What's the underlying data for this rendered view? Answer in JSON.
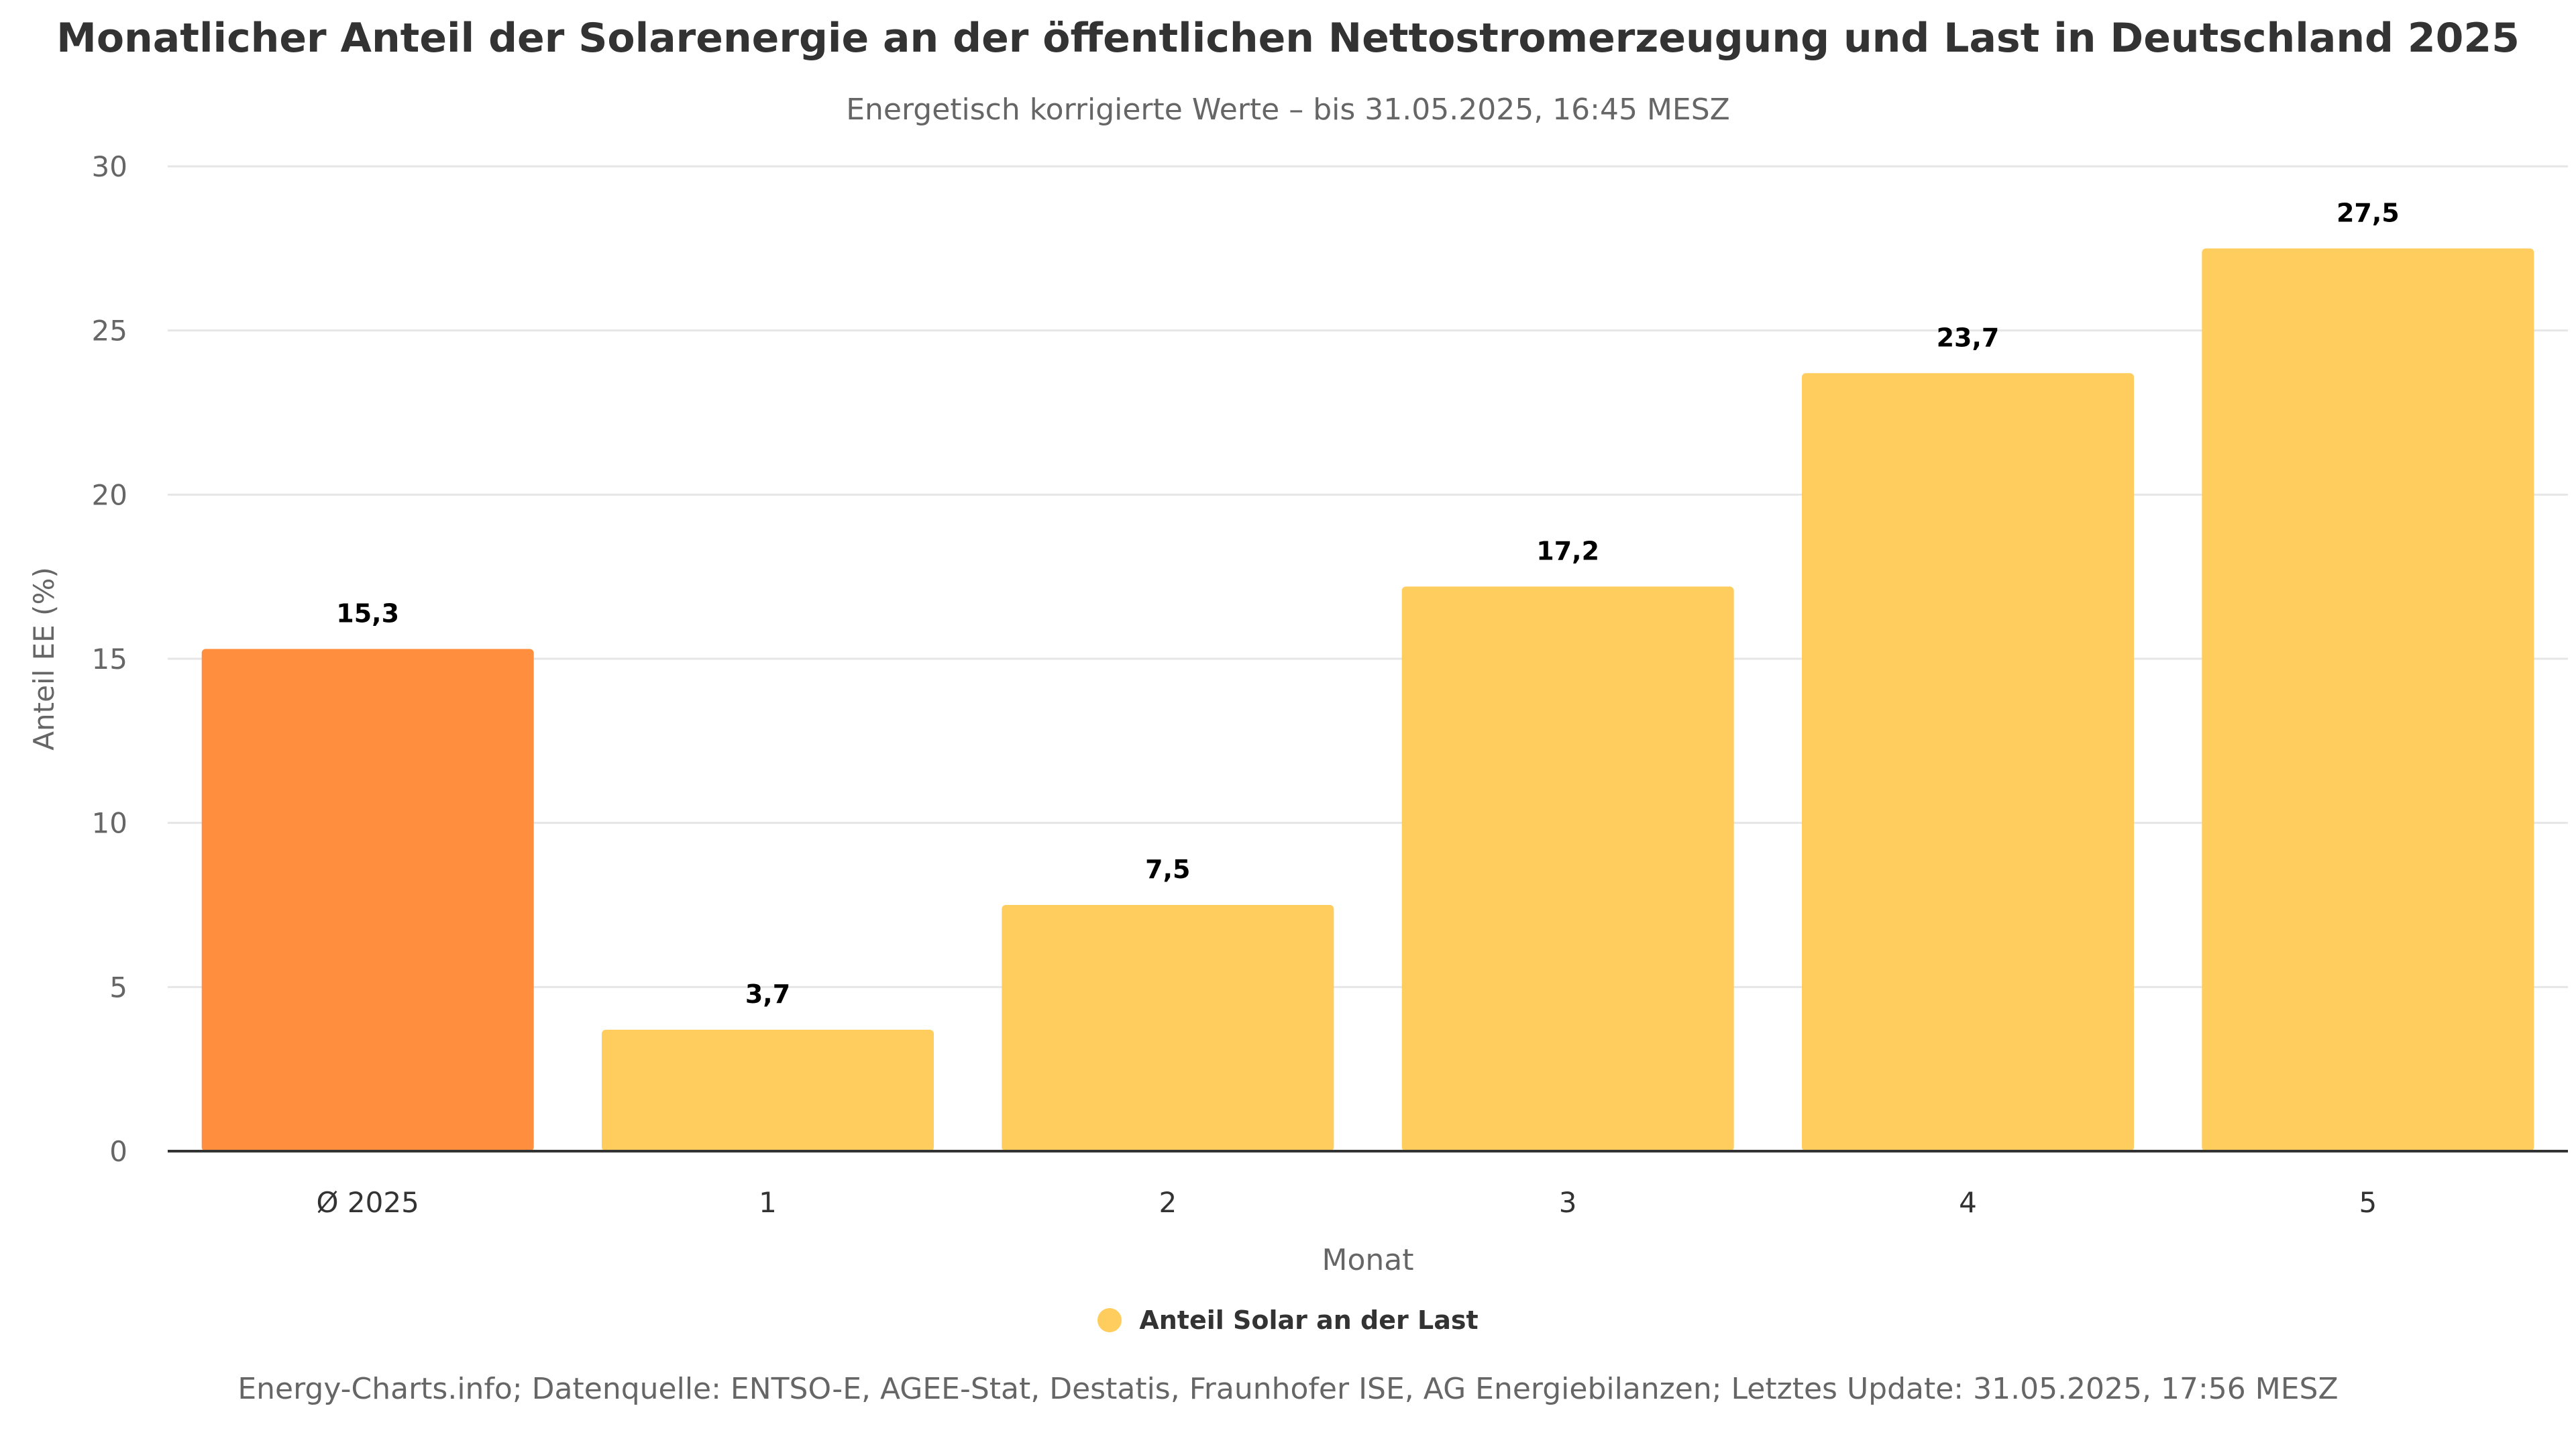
{
  "header": {
    "title": "Monatlicher Anteil der Solarenergie an der öffentlichen Nettostromerzeugung und Last in Deutschland 2025",
    "subtitle": "Energetisch korrigierte Werte – bis 31.05.2025, 16:45 MESZ"
  },
  "chart_data": {
    "type": "bar",
    "categories": [
      "Ø 2025",
      "1",
      "2",
      "3",
      "4",
      "5"
    ],
    "series": [
      {
        "name": "Anteil Solar an der Last",
        "values": [
          15.3,
          3.7,
          7.5,
          17.2,
          23.7,
          27.5
        ],
        "data_labels": [
          "15,3",
          "3,7",
          "7,5",
          "17,2",
          "23,7",
          "27,5"
        ],
        "colors": [
          "#FF8F3F",
          "#FFCC5E",
          "#FFCC5E",
          "#FFCC5E",
          "#FFCC5E",
          "#FFCC5E"
        ]
      }
    ],
    "xlabel": "Monat",
    "ylabel": "Anteil EE (%)",
    "ylim": [
      0,
      30
    ],
    "yticks": [
      0,
      5,
      10,
      15,
      20,
      25,
      30
    ],
    "grid": true,
    "legend_position": "bottom-center"
  },
  "legend": {
    "label": "Anteil Solar an der Last",
    "color": "#FFCC5E"
  },
  "footer": {
    "credits": "Energy-Charts.info; Datenquelle: ENTSO-E, AGEE-Stat, Destatis, Fraunhofer ISE, AG Energiebilanzen; Letztes Update: 31.05.2025, 17:56 MESZ"
  }
}
